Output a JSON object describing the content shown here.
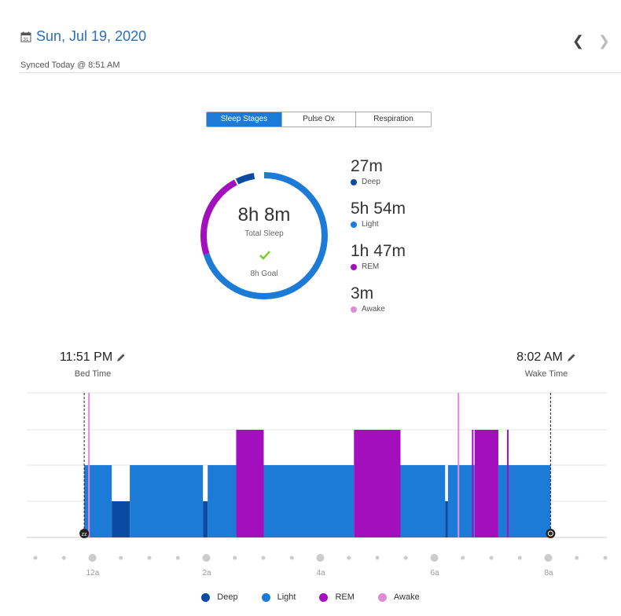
{
  "header": {
    "date": "Sun, Jul 19, 2020",
    "calendar_day": "31",
    "synced": "Synced Today @ 8:51 AM"
  },
  "tabs": [
    {
      "label": "Sleep Stages",
      "active": true
    },
    {
      "label": "Pulse Ox",
      "active": false
    },
    {
      "label": "Respiration",
      "active": false
    }
  ],
  "summary": {
    "total": "8h 8m",
    "total_label": "Total Sleep",
    "goal": "8h Goal",
    "stages": [
      {
        "duration": "27m",
        "label": "Deep"
      },
      {
        "duration": "5h 54m",
        "label": "Light"
      },
      {
        "duration": "1h 47m",
        "label": "REM"
      },
      {
        "duration": "3m",
        "label": "Awake"
      }
    ]
  },
  "bed_time": {
    "time": "11:51 PM",
    "label": "Bed Time"
  },
  "wake_time": {
    "time": "8:02 AM",
    "label": "Wake Time"
  },
  "colors": {
    "deep": "#0b4aa2",
    "light": "#1d7bd8",
    "rem": "#a30fbd",
    "awake": "#e08bd8",
    "accent": "#2a6fb8",
    "goal_check": "#6ed321"
  },
  "chart_data": {
    "type": "area",
    "x_ticks": [
      "12a",
      "2a",
      "4a",
      "6a",
      "8a"
    ],
    "levels": [
      "Deep",
      "Light",
      "REM",
      "Awake"
    ],
    "segments": [
      {
        "stage": "Light",
        "start": "23:51",
        "end": "00:20"
      },
      {
        "stage": "Deep",
        "start": "00:20",
        "end": "00:39"
      },
      {
        "stage": "Light",
        "start": "00:39",
        "end": "01:56"
      },
      {
        "stage": "Deep",
        "start": "01:56",
        "end": "02:01"
      },
      {
        "stage": "Light",
        "start": "02:01",
        "end": "02:31"
      },
      {
        "stage": "REM",
        "start": "02:31",
        "end": "03:00"
      },
      {
        "stage": "Light",
        "start": "03:00",
        "end": "04:35"
      },
      {
        "stage": "REM",
        "start": "04:35",
        "end": "05:24"
      },
      {
        "stage": "Light",
        "start": "05:24",
        "end": "06:11"
      },
      {
        "stage": "Deep",
        "start": "06:11",
        "end": "06:14"
      },
      {
        "stage": "Light",
        "start": "06:14",
        "end": "06:42"
      },
      {
        "stage": "REM",
        "start": "06:42",
        "end": "07:07"
      },
      {
        "stage": "Light",
        "start": "07:07",
        "end": "08:02"
      }
    ],
    "spikes": [
      {
        "stage": "Awake",
        "time": "23:56"
      },
      {
        "stage": "Awake",
        "time": "06:25"
      },
      {
        "stage": "REM",
        "time": "06:40"
      },
      {
        "stage": "REM",
        "time": "07:17"
      }
    ],
    "legend": [
      "Deep",
      "Light",
      "REM",
      "Awake"
    ],
    "markers": {
      "start": "23:51",
      "end": "08:02"
    }
  }
}
